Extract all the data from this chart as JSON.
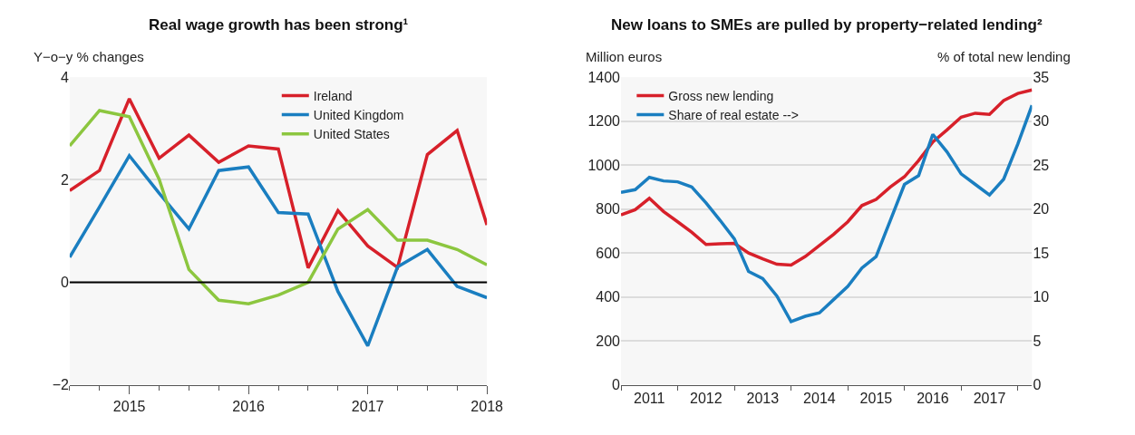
{
  "chart_data": [
    {
      "type": "line",
      "title": "Real wage growth has been strong¹",
      "ylabel": "Y−o−y % changes",
      "x": [
        2014.5,
        2014.75,
        2015,
        2015.25,
        2015.5,
        2015.75,
        2016,
        2016.25,
        2016.5,
        2016.75,
        2017,
        2017.25,
        2017.5,
        2017.75,
        2018
      ],
      "series": [
        {
          "name": "Ireland",
          "color": "#d7202a",
          "values": [
            1.79,
            2.18,
            3.58,
            2.42,
            2.87,
            2.34,
            2.66,
            2.6,
            0.28,
            1.4,
            0.71,
            0.29,
            2.49,
            2.96,
            1.12
          ]
        },
        {
          "name": "United Kingdom",
          "color": "#1a7ec0",
          "values": [
            0.49,
            1.47,
            2.47,
            1.74,
            1.04,
            2.18,
            2.25,
            1.36,
            1.33,
            -0.18,
            -1.24,
            0.3,
            0.64,
            -0.08,
            -0.3
          ]
        },
        {
          "name": "United States",
          "color": "#8cc63f",
          "values": [
            2.66,
            3.35,
            3.23,
            2.01,
            0.25,
            -0.35,
            -0.42,
            -0.25,
            0,
            1.04,
            1.42,
            0.82,
            0.82,
            0.64,
            0.34
          ]
        }
      ],
      "xlim": [
        2014.5,
        2018
      ],
      "xticks": [
        {
          "value": 2015,
          "label": "2015"
        },
        {
          "value": 2016,
          "label": "2016"
        },
        {
          "value": 2017,
          "label": "2017"
        },
        {
          "value": 2018,
          "label": "2018"
        },
        {
          "value": 2014.5,
          "label": null
        },
        {
          "value": 2014.75,
          "label": null
        },
        {
          "value": 2015.25,
          "label": null
        },
        {
          "value": 2015.5,
          "label": null
        },
        {
          "value": 2015.75,
          "label": null
        },
        {
          "value": 2016.25,
          "label": null
        },
        {
          "value": 2016.5,
          "label": null
        },
        {
          "value": 2016.75,
          "label": null
        },
        {
          "value": 2017.25,
          "label": null
        },
        {
          "value": 2017.5,
          "label": null
        },
        {
          "value": 2017.75,
          "label": null
        }
      ],
      "ylim": [
        -2,
        4
      ],
      "yticks": [
        {
          "value": -2,
          "label": "−2"
        },
        0,
        2,
        4
      ],
      "ref_lines": [
        {
          "axis": "y",
          "value": 0,
          "color": "#000000"
        }
      ],
      "grid": "y",
      "legend": "top right",
      "marker": "none",
      "line_style": "solid"
    },
    {
      "type": "line",
      "title": "New loans to SMEs are pulled by property−related lending²",
      "ylabel": "Million euros",
      "y2label": "% of total new lending",
      "x": [
        2011,
        2011.25,
        2011.5,
        2011.75,
        2012,
        2012.25,
        2012.5,
        2012.75,
        2013,
        2013.25,
        2013.5,
        2013.75,
        2014,
        2014.25,
        2014.5,
        2014.75,
        2015,
        2015.25,
        2015.5,
        2015.75,
        2016,
        2016.25,
        2016.5,
        2016.75,
        2017,
        2017.25,
        2017.5,
        2017.75,
        2018,
        2018.25
      ],
      "series": [
        {
          "name": "Gross new lending",
          "color": "#d7202a",
          "values": [
            773,
            797,
            849,
            789,
            742,
            694,
            639,
            642,
            644,
            600,
            573,
            549,
            545,
            584,
            634,
            685,
            742,
            816,
            844,
            900,
            947,
            1021,
            1105,
            1160,
            1218,
            1236,
            1231,
            1294,
            1326,
            1342
          ]
        },
        {
          "name": "Share of real estate -->",
          "color": "#1a7ec0",
          "axis": "y2",
          "values": [
            21.9,
            22.2,
            23.6,
            23.2,
            23.1,
            22.5,
            20.7,
            18.7,
            16.6,
            12.9,
            12.1,
            10.1,
            7.2,
            7.8,
            8.2,
            9.7,
            11.2,
            13.3,
            14.6,
            18.7,
            22.8,
            23.8,
            28.5,
            26.5,
            24.0,
            22.8,
            21.6,
            23.4,
            27.4,
            31.8
          ]
        }
      ],
      "xlim": [
        2011,
        2018.25
      ],
      "xticks": [
        {
          "value": 2011.5,
          "label": "2011"
        },
        {
          "value": 2012.5,
          "label": "2012"
        },
        {
          "value": 2013.5,
          "label": "2013"
        },
        {
          "value": 2014.5,
          "label": "2014"
        },
        {
          "value": 2015.5,
          "label": "2015"
        },
        {
          "value": 2016.5,
          "label": "2016"
        },
        {
          "value": 2017.5,
          "label": "2017"
        },
        {
          "value": 2011,
          "label": null
        },
        {
          "value": 2012,
          "label": null
        },
        {
          "value": 2013,
          "label": null
        },
        {
          "value": 2014,
          "label": null
        },
        {
          "value": 2015,
          "label": null
        },
        {
          "value": 2016,
          "label": null
        },
        {
          "value": 2017,
          "label": null
        },
        {
          "value": 2018,
          "label": null
        }
      ],
      "ylim": [
        0,
        1400
      ],
      "yticks": [
        0,
        200,
        400,
        600,
        800,
        1000,
        1200,
        1400
      ],
      "y2lim": [
        0,
        35
      ],
      "y2ticks": [
        0,
        5,
        10,
        15,
        20,
        25,
        30,
        35
      ],
      "grid": "y",
      "legend": "top left",
      "marker": "none",
      "line_style": "solid"
    }
  ]
}
